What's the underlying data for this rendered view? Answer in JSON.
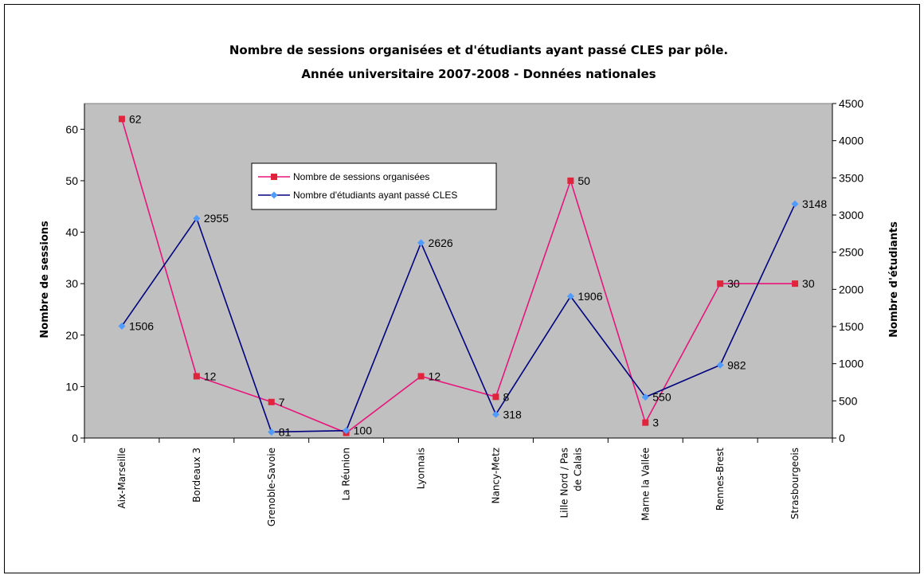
{
  "chart_data": {
    "type": "line",
    "title": "Nombre de sessions organisées et d'étudiants ayant passé CLES par pôle.",
    "subtitle": "Année universitaire 2007-2008 - Données nationales",
    "categories": [
      "Aix-Marseille",
      "Bordeaux 3",
      "Grenoble-Savoie",
      "La Réunion",
      "Lyonnais",
      "Nancy-Metz",
      "Lille Nord / Pas de Calais",
      "Marne la Vallée",
      "Rennes-Brest",
      "Strasbourgeois"
    ],
    "series": [
      {
        "name": "Nombre de sessions organisées",
        "axis": "left",
        "color": "#e8157a",
        "marker": "square",
        "marker_color": "#e0243c",
        "values": [
          62,
          12,
          7,
          1,
          12,
          8,
          50,
          3,
          30,
          30
        ],
        "labels": [
          "62",
          "12",
          "7",
          "",
          "12",
          "8",
          "50",
          "3",
          "30",
          "30"
        ]
      },
      {
        "name": "Nombre d'étudiants ayant passé CLES",
        "axis": "right",
        "color": "#00007f",
        "marker": "diamond",
        "marker_color": "#4f9bff",
        "values": [
          1506,
          2955,
          81,
          100,
          2626,
          318,
          1906,
          550,
          982,
          3148
        ],
        "labels": [
          "1506",
          "2955",
          "81",
          "100",
          "2626",
          "318",
          "1906",
          "550",
          "982",
          "3148"
        ]
      }
    ],
    "ylabel": "Nombre de sessions",
    "ylabel_right": "Nombre d'étudiants",
    "ylim": [
      0,
      65
    ],
    "yticks": [
      0,
      10,
      20,
      30,
      40,
      50,
      60
    ],
    "ylim_right": [
      0,
      4500
    ],
    "yticks_right": [
      0,
      500,
      1000,
      1500,
      2000,
      2500,
      3000,
      3500,
      4000,
      4500
    ],
    "grid": false,
    "plot_background": "#c0c0c0",
    "legend_position": "upper-center"
  }
}
